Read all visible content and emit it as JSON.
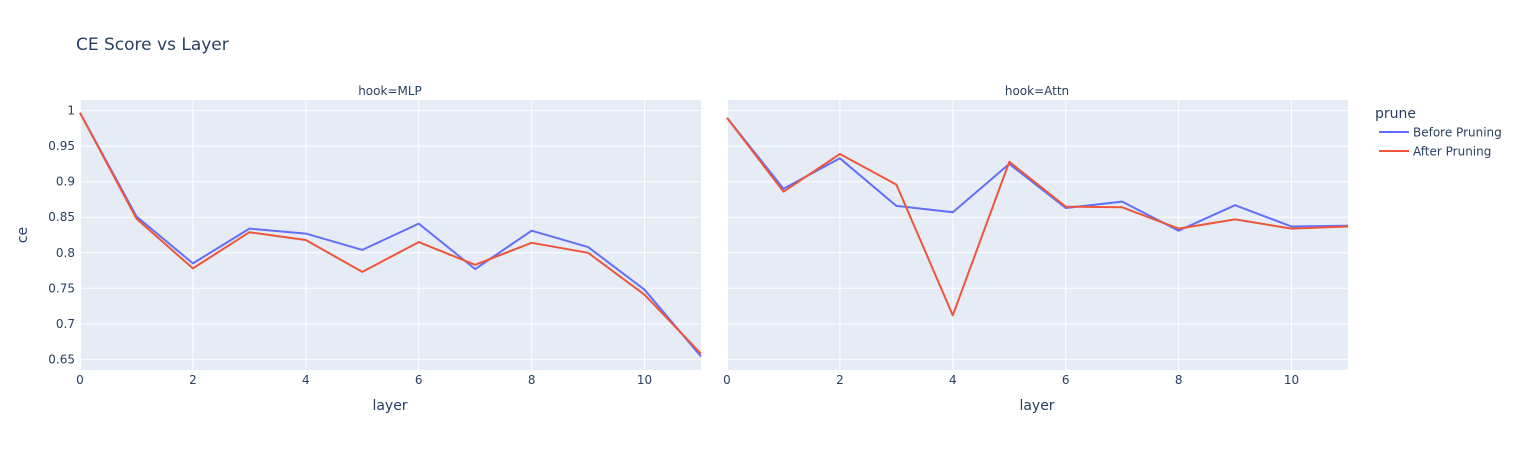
{
  "chart_data": {
    "type": "line",
    "title": "CE Score vs Layer",
    "xlabel": "layer",
    "ylabel": "ce",
    "xlim": [
      0,
      11
    ],
    "ylim": [
      0.635,
      1.015
    ],
    "x_ticks": [
      0,
      2,
      4,
      6,
      8,
      10
    ],
    "y_ticks": [
      0.65,
      0.7,
      0.75,
      0.8,
      0.85,
      0.9,
      0.95,
      1
    ],
    "y_tick_labels": [
      "0.65",
      "0.7",
      "0.75",
      "0.8",
      "0.85",
      "0.9",
      "0.95",
      "1"
    ],
    "grid": true,
    "legend": {
      "title": "prune",
      "placement": "right",
      "items": [
        {
          "name": "Before Pruning",
          "color": "#636efa"
        },
        {
          "name": "After Pruning",
          "color": "#ef553b"
        }
      ]
    },
    "facets": [
      {
        "label": "hook=MLP",
        "x": [
          0,
          1,
          2,
          3,
          4,
          5,
          6,
          7,
          8,
          9,
          10,
          11
        ],
        "series": [
          {
            "name": "Before Pruning",
            "color": "#636efa",
            "values": [
              0.997,
              0.851,
              0.785,
              0.834,
              0.827,
              0.804,
              0.841,
              0.777,
              0.831,
              0.808,
              0.748,
              0.654
            ]
          },
          {
            "name": "After Pruning",
            "color": "#ef553b",
            "values": [
              0.997,
              0.848,
              0.778,
              0.829,
              0.818,
              0.773,
              0.815,
              0.783,
              0.814,
              0.8,
              0.741,
              0.658
            ]
          }
        ]
      },
      {
        "label": "hook=Attn",
        "x": [
          0,
          1,
          2,
          3,
          4,
          5,
          6,
          7,
          8,
          9,
          10,
          11
        ],
        "series": [
          {
            "name": "Before Pruning",
            "color": "#636efa",
            "values": [
              0.99,
              0.89,
              0.933,
              0.866,
              0.857,
              0.925,
              0.863,
              0.872,
              0.831,
              0.867,
              0.837,
              0.838
            ]
          },
          {
            "name": "After Pruning",
            "color": "#ef553b",
            "values": [
              0.99,
              0.886,
              0.939,
              0.896,
              0.712,
              0.928,
              0.865,
              0.864,
              0.834,
              0.847,
              0.834,
              0.837
            ]
          }
        ]
      }
    ]
  }
}
